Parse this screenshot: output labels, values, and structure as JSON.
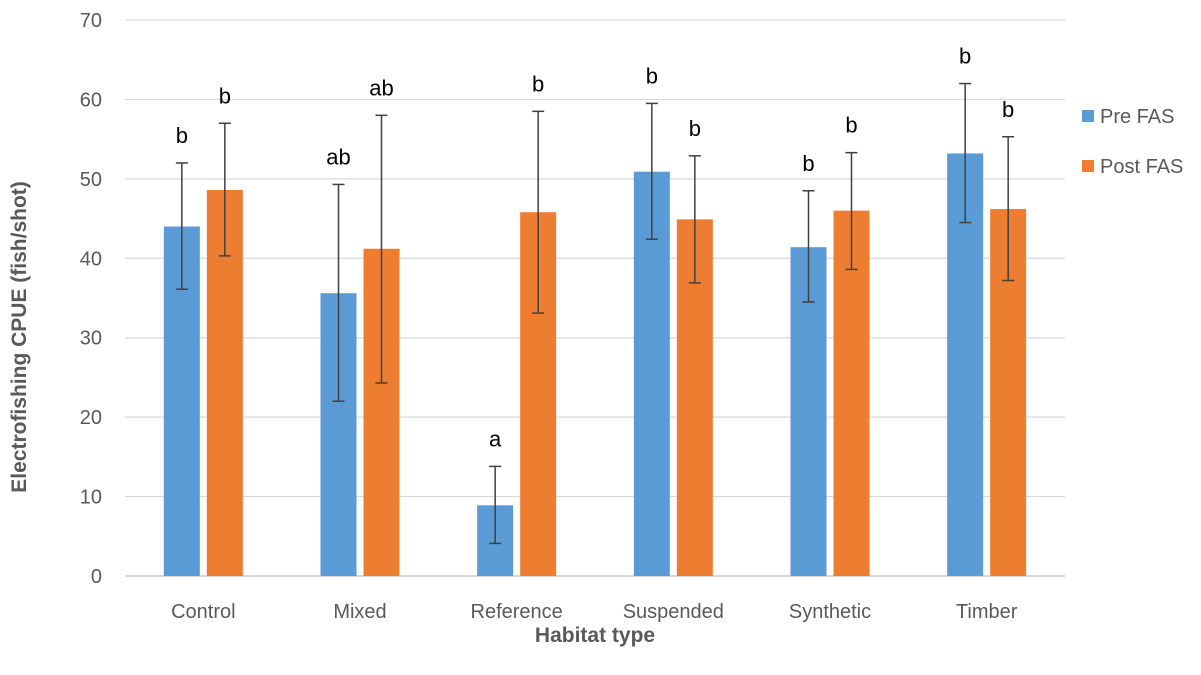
{
  "chart_data": {
    "type": "bar",
    "title": "",
    "xlabel": "Habitat type",
    "ylabel": "Electrofishing CPUE (fish/shot)",
    "ylim": [
      0,
      70
    ],
    "yticks": [
      0,
      10,
      20,
      30,
      40,
      50,
      60,
      70
    ],
    "grid": true,
    "legend_position": "right",
    "categories": [
      "Control",
      "Mixed",
      "Reference",
      "Suspended",
      "Synthetic",
      "Timber"
    ],
    "series": [
      {
        "name": "Pre FAS",
        "color": "#5B9BD5",
        "values": [
          44.0,
          35.6,
          8.9,
          50.9,
          41.4,
          53.2
        ],
        "error_low": [
          36.1,
          22.0,
          4.1,
          42.4,
          34.5,
          44.5
        ],
        "error_high": [
          52.0,
          49.3,
          13.8,
          59.5,
          48.5,
          62.0
        ],
        "significance": [
          "b",
          "ab",
          "a",
          "b",
          "b",
          "b"
        ]
      },
      {
        "name": "Post FAS",
        "color": "#ED7D31",
        "values": [
          48.6,
          41.2,
          45.8,
          44.9,
          46.0,
          46.2
        ],
        "error_low": [
          40.3,
          24.3,
          33.1,
          36.9,
          38.6,
          37.2
        ],
        "error_high": [
          57.0,
          58.0,
          58.5,
          52.9,
          53.3,
          55.3
        ],
        "significance": [
          "b",
          "ab",
          "b",
          "b",
          "b",
          "b"
        ]
      }
    ]
  }
}
